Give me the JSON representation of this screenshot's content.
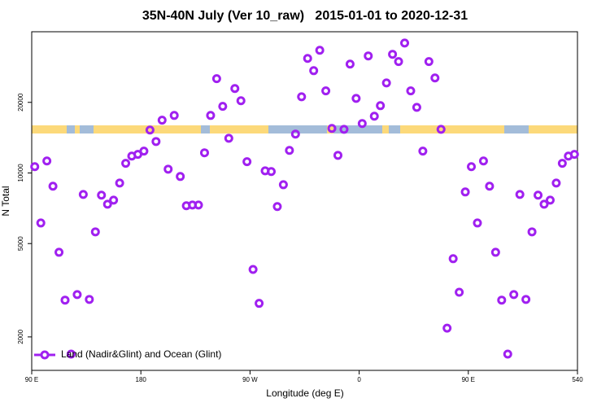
{
  "chart_data": {
    "type": "scatter",
    "title": "35N-40N July (Ver 10_raw)   2015-01-01 to 2020-12-31",
    "xlabel": "Longitude (deg E)",
    "ylabel": "N Total",
    "xlim": [
      90,
      540
    ],
    "ylim": [
      1440,
      40000
    ],
    "log_y": true,
    "legend": "bottom-left",
    "xticks": [
      {
        "value": 90,
        "label": "90 E"
      },
      180,
      {
        "value": 270,
        "label": "90 W"
      },
      {
        "value": 360,
        "label": "0"
      },
      {
        "value": 450,
        "label": "90 E"
      },
      540
    ],
    "yticks": [
      2000,
      5000,
      10000,
      20000
    ],
    "series": [
      {
        "name": "Land (Nadir&Glint) and Ocean (Glint)",
        "color": "#a020f0",
        "x": [
          92.5,
          97.5,
          102.5,
          107.5,
          112.5,
          117.5,
          122.5,
          127.5,
          132.5,
          137.5,
          142.5,
          147.5,
          152.5,
          157.5,
          162.5,
          167.5,
          172.5,
          177.5,
          182.5,
          187.5,
          192.5,
          197.5,
          202.5,
          207.5,
          212.5,
          217.5,
          222.5,
          227.5,
          232.5,
          237.5,
          242.5,
          247.5,
          252.5,
          257.5,
          262.5,
          267.5,
          272.5,
          277.5,
          282.5,
          287.5,
          292.5,
          297.5,
          302.5,
          307.5,
          312.5,
          317.5,
          322.5,
          327.5,
          332.5,
          337.5,
          342.5,
          347.5,
          352.5,
          357.5,
          362.5,
          367.5,
          372.5,
          377.5,
          382.5,
          387.5,
          392.5,
          397.5,
          402.5,
          407.5,
          412.5,
          417.5,
          422.5,
          427.5,
          432.5,
          437.5,
          442.5,
          447.5,
          452.5,
          457.5,
          462.5,
          467.5,
          472.5,
          477.5,
          482.5,
          487.5,
          492.5,
          497.5,
          502.5,
          507.5,
          512.5,
          517.5,
          522.5,
          527.5,
          532.5,
          537.5
        ],
        "values": [
          10640,
          6120,
          11250,
          8780,
          4590,
          2870,
          1690,
          3030,
          8100,
          2890,
          5610,
          8040,
          7360,
          7660,
          9060,
          10990,
          11800,
          12000,
          12390,
          15240,
          13620,
          16790,
          10380,
          17590,
          9660,
          7250,
          7300,
          7300,
          12190,
          17590,
          25230,
          19230,
          14060,
          22910,
          20320,
          11170,
          3880,
          2780,
          10210,
          10140,
          7190,
          8910,
          12480,
          14650,
          21130,
          30800,
          27300,
          33340,
          22390,
          15490,
          11890,
          15350,
          29110,
          20800,
          16250,
          31550,
          17460,
          19360,
          24210,
          32060,
          29850,
          35810,
          22390,
          19050,
          12390,
          29850,
          25410,
          15350,
          2180,
          4310,
          3100,
          8300,
          10640,
          6120,
          11250,
          8780,
          4590,
          2870,
          1690,
          3030,
          8100,
          2890,
          5610,
          8040,
          7360,
          7660,
          9060,
          10990,
          11800,
          12000
        ]
      }
    ]
  }
}
